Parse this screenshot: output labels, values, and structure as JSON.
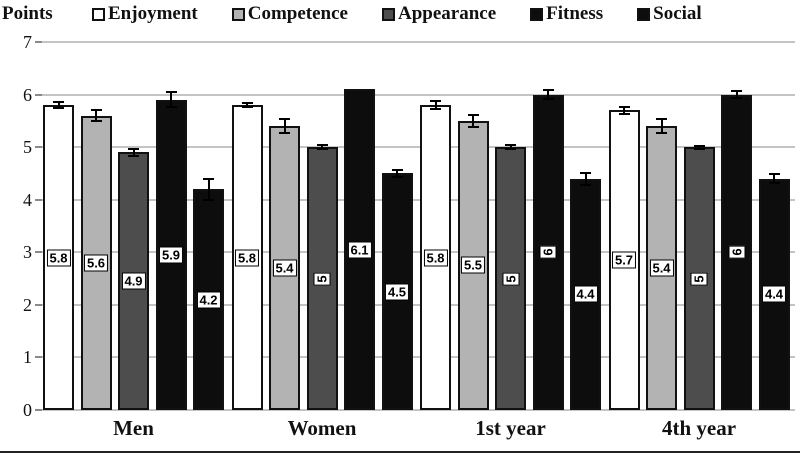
{
  "axis_corner_label": "Points",
  "legend": {
    "items": [
      {
        "label": "Enjoyment",
        "color": "#ffffff"
      },
      {
        "label": "Competence",
        "color": "#b3b3b3"
      },
      {
        "label": "Appearance",
        "color": "#4d4d4d"
      },
      {
        "label": "Fitness",
        "color": "#0d0d0d"
      },
      {
        "label": "Social",
        "color": "#0d0d0d"
      }
    ]
  },
  "chart_data": {
    "type": "bar",
    "title": "",
    "xlabel": "",
    "ylabel": "Points",
    "categories": [
      "Men",
      "Women",
      "1st year",
      "4th year"
    ],
    "series": [
      {
        "name": "Enjoyment",
        "color": "#ffffff",
        "values": [
          5.8,
          5.8,
          5.8,
          5.7
        ],
        "labels": [
          "5.8",
          "5.8",
          "5.8",
          "5.7"
        ],
        "errors": [
          0.07,
          0.06,
          0.09,
          0.09
        ]
      },
      {
        "name": "Competence",
        "color": "#b3b3b3",
        "values": [
          5.6,
          5.4,
          5.5,
          5.4
        ],
        "labels": [
          "5.6",
          "5.4",
          "5.5",
          "5.4"
        ],
        "errors": [
          0.13,
          0.15,
          0.13,
          0.15
        ]
      },
      {
        "name": "Appearance",
        "color": "#4d4d4d",
        "values": [
          4.9,
          5.0,
          5.0,
          5.0
        ],
        "labels": [
          "4.9",
          "5",
          "5",
          "5"
        ],
        "errors": [
          0.09,
          0.06,
          0.06,
          0.05
        ]
      },
      {
        "name": "Fitness",
        "color": "#0d0d0d",
        "values": [
          5.9,
          6.1,
          6.0,
          6.0
        ],
        "labels": [
          "5.9",
          "6.1",
          "6",
          "6"
        ],
        "errors": [
          0.16,
          0.0,
          0.11,
          0.09
        ]
      },
      {
        "name": "Social",
        "color": "#0d0d0d",
        "values": [
          4.2,
          4.5,
          4.4,
          4.4
        ],
        "labels": [
          "4.2",
          "4.5",
          "4.4",
          "4.4"
        ],
        "errors": [
          0.22,
          0.08,
          0.13,
          0.11
        ]
      }
    ],
    "ylim": [
      0,
      7
    ],
    "yticks": [
      0,
      1,
      2,
      3,
      4,
      5,
      6,
      7
    ],
    "grid": true,
    "error_bars": true,
    "value_labels_position": "center-of-bar",
    "legend_position": "top"
  }
}
